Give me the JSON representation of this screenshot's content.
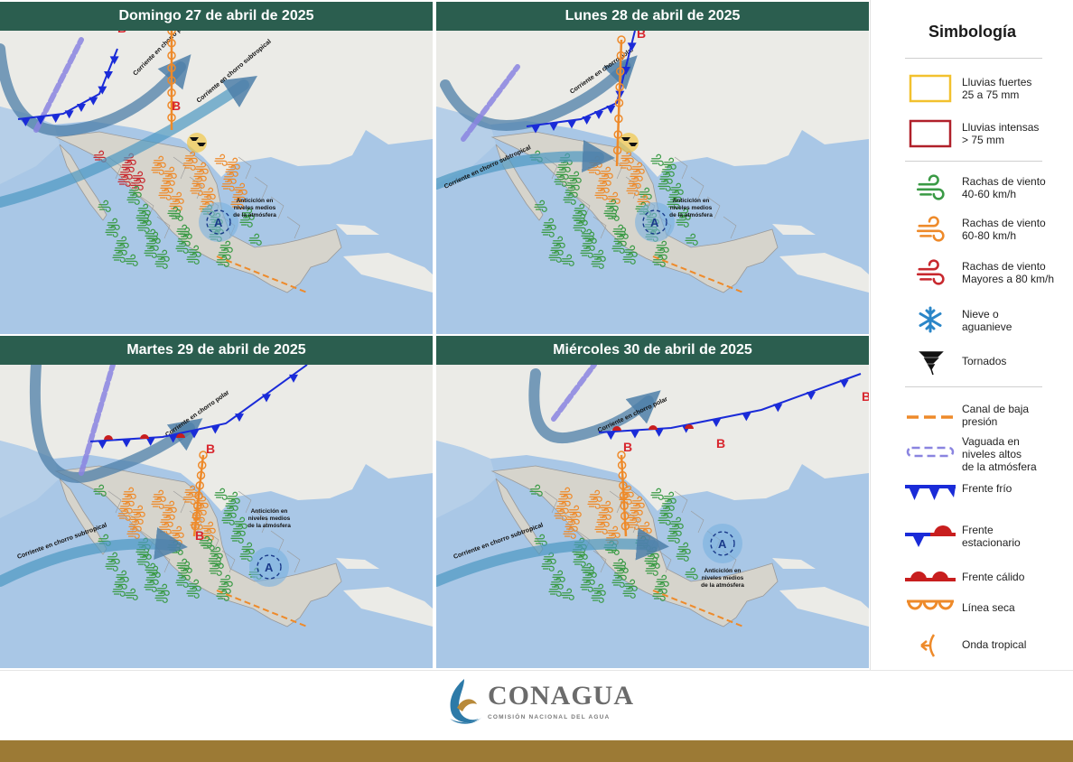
{
  "panels": [
    {
      "title": "Domingo 27 de abril de 2025",
      "labels": {
        "polar": "Corriente en chorro polar",
        "subtropical": "Corriente en chorro subtropical",
        "anticyclone_l1": "Anticiclón en",
        "anticyclone_l2": "niveles medios",
        "anticyclone_l3": "de la atmósfera"
      }
    },
    {
      "title": "Lunes 28 de abril de 2025",
      "labels": {
        "polar": "Corriente en chorro polar",
        "subtropical": "Corriente en chorro subtropical",
        "anticyclone_l1": "Anticiclón en",
        "anticyclone_l2": "niveles medios",
        "anticyclone_l3": "de la atmósfera"
      }
    },
    {
      "title": "Martes 29 de abril de 2025",
      "labels": {
        "polar": "Corriente en chorro polar",
        "subtropical": "Corriente en chorro subtropical",
        "anticyclone_l1": "Anticiclón en",
        "anticyclone_l2": "niveles medios",
        "anticyclone_l3": "de la atmósfera"
      }
    },
    {
      "title": "Miércoles 30 de abril de 2025",
      "labels": {
        "polar": "Corriente en chorro polar",
        "subtropical": "Corriente en chorro subtropical",
        "anticyclone_l1": "Anticiclón en",
        "anticyclone_l2": "niveles medios",
        "anticyclone_l3": "de la atmósfera"
      }
    }
  ],
  "map_symbols": {
    "low": "B",
    "high": "A"
  },
  "legend": {
    "title": "Simbología",
    "items": [
      {
        "line1": "Lluvias fuertes",
        "line2": "25 a 75 mm",
        "icon": "rain-box-icon",
        "color": "#f2c12e"
      },
      {
        "line1": "Lluvias intensas",
        "line2": "> 75 mm",
        "icon": "rain-box-icon",
        "color": "#b0202a"
      },
      {
        "line1": "Rachas de viento",
        "line2": "40-60 km/h",
        "icon": "wind-icon",
        "color": "#3a9a45"
      },
      {
        "line1": "Rachas de viento",
        "line2": "60-80 km/h",
        "icon": "wind-icon",
        "color": "#ee8a2a"
      },
      {
        "line1": "Rachas de viento",
        "line2": "Mayores a 80 km/h",
        "icon": "wind-icon",
        "color": "#c8282e"
      },
      {
        "line1": "Nieve o",
        "line2": "aguanieve",
        "icon": "snowflake-icon",
        "color": "#2a86c8"
      },
      {
        "line1": "Tornados",
        "line2": "",
        "icon": "tornado-icon",
        "color": "#111111"
      },
      {
        "line1": "Canal de baja",
        "line2": "presión",
        "icon": "trough-icon",
        "color": "#ee8a2a"
      },
      {
        "line1": "Vaguada en",
        "line2": "niveles altos",
        "line3": "de la atmósfera",
        "icon": "upper-trough-icon",
        "color": "#8a84e0"
      },
      {
        "line1": "Frente frío",
        "line2": "",
        "icon": "cold-front-icon",
        "color": "#1a2bd8"
      },
      {
        "line1": "Frente",
        "line2": "estacionario",
        "icon": "stationary-front-icon",
        "color": "#1a2bd8"
      },
      {
        "line1": "Frente cálido",
        "line2": "",
        "icon": "warm-front-icon",
        "color": "#c81e1e"
      },
      {
        "line1": "Línea seca",
        "line2": "",
        "icon": "dry-line-icon",
        "color": "#ee8a2a"
      },
      {
        "line1": "Onda tropical",
        "line2": "",
        "icon": "tropical-wave-icon",
        "color": "#ee8a2a"
      }
    ]
  },
  "logo": {
    "name": "CONAGUA",
    "subtitle": "COMISIÓN NACIONAL DEL AGUA"
  },
  "colors": {
    "header": "#2b5e4f",
    "gold_bar": "#9c7a35",
    "ocean": "#a9c7e6",
    "land": "#ebebe7",
    "mexico": "#d6d4cc"
  }
}
